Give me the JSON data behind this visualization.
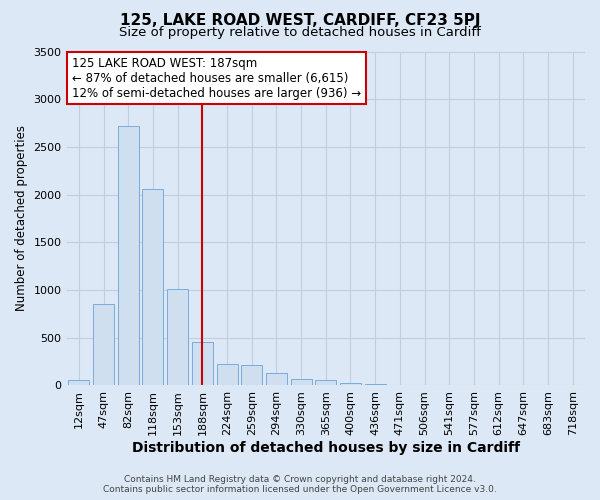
{
  "title": "125, LAKE ROAD WEST, CARDIFF, CF23 5PJ",
  "subtitle": "Size of property relative to detached houses in Cardiff",
  "xlabel": "Distribution of detached houses by size in Cardiff",
  "ylabel": "Number of detached properties",
  "bar_color": "#cfdff0",
  "bar_edge_color": "#7aabda",
  "categories": [
    "12sqm",
    "47sqm",
    "82sqm",
    "118sqm",
    "153sqm",
    "188sqm",
    "224sqm",
    "259sqm",
    "294sqm",
    "330sqm",
    "365sqm",
    "400sqm",
    "436sqm",
    "471sqm",
    "506sqm",
    "541sqm",
    "577sqm",
    "612sqm",
    "647sqm",
    "683sqm",
    "718sqm"
  ],
  "values": [
    60,
    850,
    2720,
    2060,
    1010,
    455,
    225,
    215,
    130,
    65,
    55,
    30,
    20,
    5,
    5,
    0,
    0,
    0,
    0,
    0,
    0
  ],
  "ylim": [
    0,
    3500
  ],
  "yticks": [
    0,
    500,
    1000,
    1500,
    2000,
    2500,
    3000,
    3500
  ],
  "annotation_title": "125 LAKE ROAD WEST: 187sqm",
  "annotation_line1": "← 87% of detached houses are smaller (6,615)",
  "annotation_line2": "12% of semi-detached houses are larger (936) →",
  "vline_x_index": 5,
  "vline_color": "#cc0000",
  "footer1": "Contains HM Land Registry data © Crown copyright and database right 2024.",
  "footer2": "Contains public sector information licensed under the Open Government Licence v3.0.",
  "background_color": "#dce8f5",
  "plot_bg_color": "#dce8f5",
  "grid_color": "#bfcfe0",
  "title_fontsize": 11,
  "subtitle_fontsize": 9.5,
  "xlabel_fontsize": 10,
  "ylabel_fontsize": 8.5,
  "tick_fontsize": 8,
  "annotation_fontsize": 8.5,
  "footer_fontsize": 6.5
}
